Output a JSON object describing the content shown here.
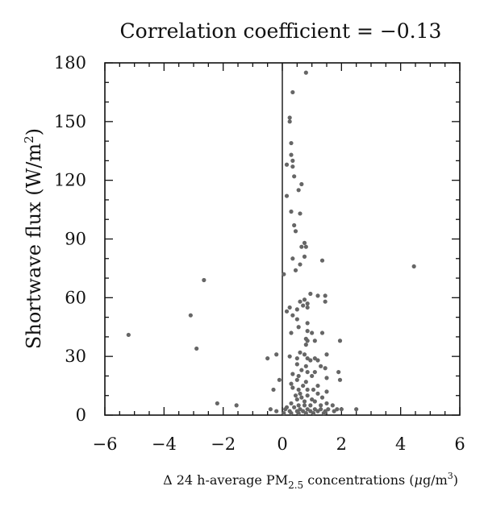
{
  "chart_data": {
    "type": "scatter",
    "title": "Correlation coefficient = −0.13",
    "xlabel_parts": {
      "prefix": "Δ 24 h-average PM",
      "subscript": "2.5",
      "middle": " concentrations (",
      "mu": "μ",
      "unit": "g/m",
      "superscript": "3",
      "suffix": ")"
    },
    "ylabel_parts": {
      "text": "Shortwave flux (W/m",
      "superscript": "2",
      "suffix": ")"
    },
    "xlim": [
      -6,
      6
    ],
    "ylim": [
      0,
      180
    ],
    "xticks": [
      -6,
      -4,
      -2,
      0,
      2,
      4,
      6
    ],
    "xtick_labels": [
      "−6",
      "−4",
      "−2",
      "0",
      "2",
      "4",
      "6"
    ],
    "yticks": [
      0,
      30,
      60,
      90,
      120,
      150,
      180
    ],
    "ytick_labels": [
      "0",
      "30",
      "60",
      "90",
      "120",
      "150",
      "180"
    ],
    "grid": false,
    "vertical_reference_line_x": 0,
    "point_color": "#666666",
    "points": [
      [
        0.8,
        175
      ],
      [
        0.35,
        165
      ],
      [
        0.25,
        152
      ],
      [
        0.25,
        150
      ],
      [
        0.3,
        139
      ],
      [
        0.3,
        133
      ],
      [
        0.35,
        130
      ],
      [
        0.15,
        128
      ],
      [
        0.35,
        127
      ],
      [
        0.4,
        122
      ],
      [
        0.65,
        118
      ],
      [
        0.55,
        115
      ],
      [
        0.15,
        112
      ],
      [
        0.3,
        104
      ],
      [
        0.6,
        103
      ],
      [
        0.4,
        97
      ],
      [
        0.45,
        94
      ],
      [
        0.75,
        88
      ],
      [
        0.65,
        86
      ],
      [
        0.8,
        86
      ],
      [
        0.75,
        81
      ],
      [
        0.35,
        80
      ],
      [
        1.35,
        79
      ],
      [
        0.6,
        77
      ],
      [
        0.45,
        74
      ],
      [
        0.05,
        72
      ],
      [
        0.95,
        62
      ],
      [
        1.2,
        61
      ],
      [
        1.45,
        61
      ],
      [
        0.75,
        59
      ],
      [
        0.6,
        58
      ],
      [
        1.45,
        58
      ],
      [
        0.85,
        57
      ],
      [
        0.7,
        56
      ],
      [
        0.85,
        55
      ],
      [
        0.25,
        55
      ],
      [
        0.5,
        54
      ],
      [
        0.15,
        53
      ],
      [
        0.35,
        51
      ],
      [
        0.5,
        49
      ],
      [
        0.85,
        47
      ],
      [
        0.55,
        45
      ],
      [
        0.85,
        43
      ],
      [
        0.3,
        42
      ],
      [
        1.0,
        42
      ],
      [
        1.35,
        42
      ],
      [
        0.8,
        39
      ],
      [
        0.85,
        38
      ],
      [
        1.1,
        38
      ],
      [
        1.95,
        38
      ],
      [
        0.8,
        36
      ],
      [
        0.6,
        32
      ],
      [
        0.75,
        31
      ],
      [
        1.5,
        31
      ],
      [
        0.25,
        30
      ],
      [
        0.5,
        29
      ],
      [
        0.85,
        29
      ],
      [
        1.1,
        29
      ],
      [
        0.95,
        28
      ],
      [
        1.2,
        28
      ],
      [
        -0.5,
        29
      ],
      [
        -0.2,
        31
      ],
      [
        0.5,
        26
      ],
      [
        0.8,
        25
      ],
      [
        1.3,
        25
      ],
      [
        1.45,
        24
      ],
      [
        0.65,
        23
      ],
      [
        0.85,
        22
      ],
      [
        1.1,
        22
      ],
      [
        1.9,
        22
      ],
      [
        0.35,
        21
      ],
      [
        0.55,
        20
      ],
      [
        1.0,
        20
      ],
      [
        1.5,
        19
      ],
      [
        1.95,
        18
      ],
      [
        0.5,
        18
      ],
      [
        0.8,
        17
      ],
      [
        -0.1,
        18
      ],
      [
        0.3,
        16
      ],
      [
        0.7,
        15
      ],
      [
        1.2,
        15
      ],
      [
        0.35,
        14
      ],
      [
        0.55,
        13
      ],
      [
        0.85,
        13
      ],
      [
        1.05,
        13
      ],
      [
        1.5,
        12
      ],
      [
        1.2,
        11
      ],
      [
        0.6,
        11
      ],
      [
        0.85,
        10
      ],
      [
        0.45,
        10
      ],
      [
        0.65,
        9
      ],
      [
        1.35,
        9
      ],
      [
        1.0,
        8
      ],
      [
        0.5,
        8
      ],
      [
        0.75,
        7
      ],
      [
        1.1,
        7
      ],
      [
        1.5,
        6
      ],
      [
        0.3,
        6
      ],
      [
        0.55,
        5
      ],
      [
        0.75,
        5
      ],
      [
        0.95,
        5
      ],
      [
        1.3,
        5
      ],
      [
        1.7,
        5
      ],
      [
        0.15,
        4
      ],
      [
        0.4,
        4
      ],
      [
        0.6,
        3
      ],
      [
        0.85,
        3
      ],
      [
        1.1,
        3
      ],
      [
        1.3,
        3
      ],
      [
        1.55,
        3
      ],
      [
        1.85,
        3
      ],
      [
        2.0,
        3
      ],
      [
        0.25,
        2
      ],
      [
        0.5,
        2
      ],
      [
        0.7,
        2
      ],
      [
        0.95,
        2
      ],
      [
        1.2,
        2
      ],
      [
        1.45,
        2
      ],
      [
        1.75,
        2
      ],
      [
        2.5,
        3
      ],
      [
        0.3,
        1
      ],
      [
        0.55,
        1
      ],
      [
        0.8,
        1
      ],
      [
        1.05,
        1
      ],
      [
        1.4,
        1
      ],
      [
        -0.2,
        2
      ],
      [
        -0.4,
        3
      ],
      [
        0.1,
        3
      ],
      [
        -0.3,
        13
      ],
      [
        0.05,
        1
      ],
      [
        -5.2,
        41
      ],
      [
        -3.1,
        51
      ],
      [
        -2.9,
        34
      ],
      [
        -2.65,
        69
      ],
      [
        -2.2,
        6
      ],
      [
        -1.55,
        5
      ],
      [
        4.45,
        76
      ]
    ]
  }
}
